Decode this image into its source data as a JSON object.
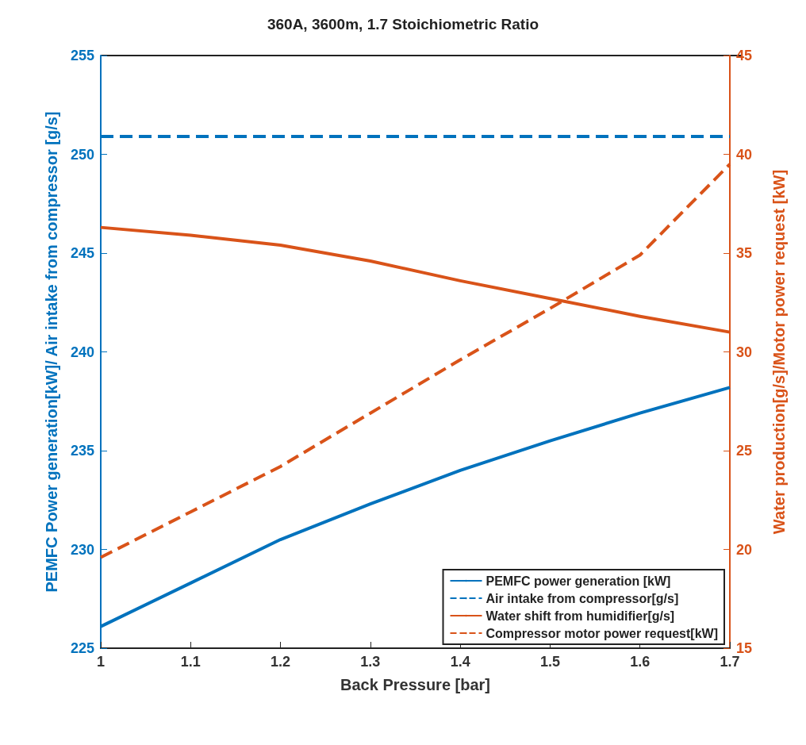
{
  "chart_data": {
    "type": "line",
    "title": "360A, 3600m, 1.7 Stoichiometric Ratio",
    "xlabel": "Back Pressure [bar]",
    "ylabel": "PEMFC Power generation[kW]/ Air intake from compressor [g/s]",
    "y2label": "Water production[g/s]/Motor power request [kW]",
    "x": [
      1,
      1.1,
      1.2,
      1.3,
      1.4,
      1.5,
      1.6,
      1.7
    ],
    "xlim": [
      1,
      1.7
    ],
    "xticks": [
      1,
      1.1,
      1.2,
      1.3,
      1.4,
      1.5,
      1.6,
      1.7
    ],
    "ylim": [
      225,
      255
    ],
    "yticks": [
      225,
      230,
      235,
      240,
      245,
      250,
      255
    ],
    "y2lim": [
      15,
      45
    ],
    "y2ticks": [
      15,
      20,
      25,
      30,
      35,
      40,
      45
    ],
    "grid": false,
    "legend": "bottom right",
    "marker": "none",
    "series": [
      {
        "name": "PEMFC power generation [kW]",
        "color": "#0072bd",
        "line_style": "solid",
        "values": [
          226.1,
          228.3,
          230.5,
          232.3,
          234.0,
          235.5,
          236.9,
          238.2
        ]
      },
      {
        "name": "Air intake from compressor[g/s]",
        "color": "#0072bd",
        "line_style": "dashed",
        "values": [
          250.9,
          250.9,
          250.9,
          250.9,
          250.9,
          250.9,
          250.9,
          250.9
        ]
      },
      {
        "name": "Water shift from humidifier[g/s]",
        "color": "#d95319",
        "line_style": "solid",
        "axis": "y2",
        "values": [
          36.3,
          35.9,
          35.4,
          34.6,
          33.6,
          32.7,
          31.8,
          31.0
        ]
      },
      {
        "name": "Compressor motor power request[kW]",
        "color": "#d95319",
        "line_style": "dashed",
        "axis": "y2",
        "values": [
          19.6,
          21.9,
          24.2,
          26.9,
          29.6,
          32.2,
          34.9,
          39.5
        ]
      }
    ]
  }
}
